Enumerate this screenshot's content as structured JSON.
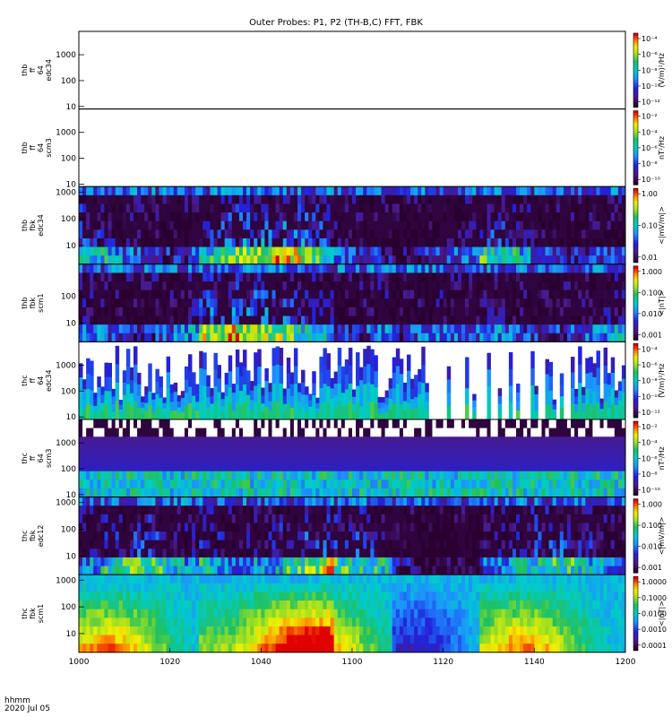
{
  "title": "Outer Probes: P1, P2 (TH-B,C) FFT, FBK",
  "corner": {
    "time_label": "hhmm",
    "date_label": "2020 Jul 05"
  },
  "x_ticks": [
    "1000",
    "1020",
    "1040",
    "1100",
    "1120",
    "1140",
    "1200"
  ],
  "chart_data": [
    {
      "type": "heatmap",
      "panel_label": [
        "thb",
        "ff",
        "64",
        "edc34"
      ],
      "yticks": [
        "1000",
        "100",
        "10"
      ],
      "ylim": [
        8,
        8000
      ],
      "colorbar_ticks": [
        "10⁻⁴",
        "10⁻⁶",
        "10⁻⁸",
        "10⁻¹⁰",
        "10⁻¹²"
      ],
      "colorbar_label": "(V/m)²/Hz",
      "colorbar_scale": "log",
      "fill": "none"
    },
    {
      "type": "heatmap",
      "panel_label": [
        "thb",
        "ff",
        "64",
        "scm3"
      ],
      "yticks": [
        "1000",
        "100",
        "10"
      ],
      "ylim": [
        8,
        8000
      ],
      "colorbar_ticks": [
        "10⁻²",
        "10⁻⁴",
        "10⁻⁶",
        "10⁻⁸",
        "10⁻¹⁰"
      ],
      "colorbar_label": "nT²/Hz",
      "colorbar_scale": "log",
      "fill": "none"
    },
    {
      "type": "heatmap",
      "panel_label": [
        "thb",
        "fbk",
        "edc34"
      ],
      "yticks": [
        "1000",
        "100",
        "10"
      ],
      "ylim": [
        2,
        1600
      ],
      "colorbar_ticks": [
        "1.00",
        "0.10",
        "0.01"
      ],
      "colorbar_label": "<|mV/m|>",
      "colorbar_scale": "log",
      "fill": "bands"
    },
    {
      "type": "heatmap",
      "panel_label": [
        "thb",
        "fbk",
        "scm1"
      ],
      "yticks": [
        "100",
        "10"
      ],
      "ylim": [
        2,
        1600
      ],
      "colorbar_ticks": [
        "1.000",
        "0.100",
        "0.010",
        "0.001"
      ],
      "colorbar_label": "<|nT|>",
      "colorbar_scale": "log",
      "fill": "bands"
    },
    {
      "type": "heatmap",
      "panel_label": [
        "thc",
        "ff",
        "64",
        "edc34"
      ],
      "yticks": [
        "1000",
        "100",
        "10"
      ],
      "ylim": [
        8,
        8000
      ],
      "colorbar_ticks": [
        "10⁻⁴",
        "10⁻⁶",
        "10⁻⁸",
        "10⁻¹⁰",
        "10⁻¹²"
      ],
      "colorbar_label": "(V/m)²/Hz",
      "colorbar_scale": "log",
      "fill": "spikes"
    },
    {
      "type": "heatmap",
      "panel_label": [
        "thc",
        "ff",
        "64",
        "scm3"
      ],
      "yticks": [
        "1000",
        "100",
        "10"
      ],
      "ylim": [
        8,
        8000
      ],
      "colorbar_ticks": [
        "10⁻²",
        "10⁻⁴",
        "10⁻⁶",
        "10⁻⁸",
        "10⁻¹⁰"
      ],
      "colorbar_label": "nT²/Hz",
      "colorbar_scale": "log",
      "fill": "noise"
    },
    {
      "type": "heatmap",
      "panel_label": [
        "thc",
        "fbk",
        "edc12"
      ],
      "yticks": [
        "1000",
        "100",
        "10"
      ],
      "ylim": [
        2,
        1600
      ],
      "colorbar_ticks": [
        "1.000",
        "0.100",
        "0.010",
        "0.001"
      ],
      "colorbar_label": "<|mV/m|>",
      "colorbar_scale": "log",
      "fill": "bands"
    },
    {
      "type": "heatmap",
      "panel_label": [
        "thc",
        "fbk",
        "scm1"
      ],
      "yticks": [
        "1000",
        "100",
        "10"
      ],
      "ylim": [
        2,
        1600
      ],
      "colorbar_ticks": [
        "1.0000",
        "0.1000",
        "0.0100",
        "0.0010",
        "0.0001"
      ],
      "colorbar_label": "<|nT|>",
      "colorbar_scale": "log",
      "fill": "smooth"
    }
  ]
}
